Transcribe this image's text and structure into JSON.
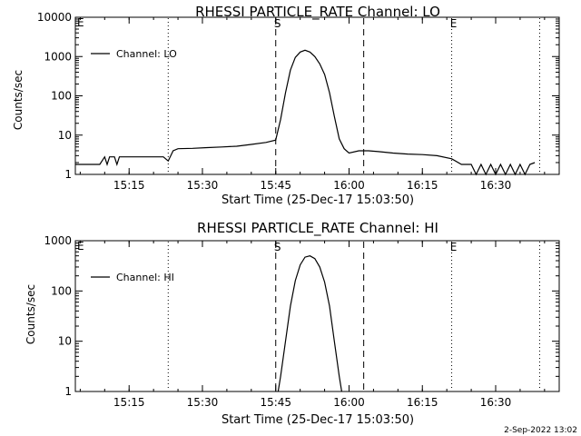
{
  "footer_stamp": "2-Sep-2022 13:02",
  "chart_data": [
    {
      "type": "line",
      "title": "RHESSI PARTICLE_RATE Channel: LO",
      "xlabel": "Start Time (25-Dec-17 15:03:50)",
      "ylabel": "Counts/sec",
      "yscale": "log",
      "xlim": [
        "15:04",
        "16:43"
      ],
      "ylim": [
        1,
        10000
      ],
      "xticks": [
        "15:15",
        "15:30",
        "15:45",
        "16:00",
        "16:15",
        "16:30"
      ],
      "yticks": [
        "1",
        "10",
        "100",
        "1000",
        "10000"
      ],
      "legend": "top-left",
      "grid": false,
      "markers": [
        {
          "time": "15:23:00",
          "style": "dotted",
          "label": ""
        },
        {
          "time": "15:45:00",
          "style": "dashed",
          "label": "S"
        },
        {
          "time": "16:03:00",
          "style": "dashed",
          "label": ""
        },
        {
          "time": "16:21:00",
          "style": "dotted",
          "label": "E"
        },
        {
          "time": "16:39:00",
          "style": "dotted",
          "label": ""
        }
      ],
      "corner_labels": [
        "E"
      ],
      "series": [
        {
          "name": "Channel: LO",
          "x": [
            "15:04:00",
            "15:09:00",
            "15:10:00",
            "15:10:30",
            "15:11:00",
            "15:12:00",
            "15:12:30",
            "15:13:00",
            "15:13:30",
            "15:17:00",
            "15:18:00",
            "15:19:00",
            "15:20:00",
            "15:21:00",
            "15:22:00",
            "15:23:00",
            "15:24:00",
            "15:25:00",
            "15:28:00",
            "15:31:00",
            "15:34:00",
            "15:37:00",
            "15:40:00",
            "15:43:00",
            "15:45:00",
            "15:46:00",
            "15:47:00",
            "15:48:00",
            "15:49:00",
            "15:50:00",
            "15:51:00",
            "15:52:00",
            "15:53:00",
            "15:54:00",
            "15:55:00",
            "15:56:00",
            "15:57:00",
            "15:58:00",
            "15:59:00",
            "16:00:00",
            "16:02:00",
            "16:04:00",
            "16:06:00",
            "16:09:00",
            "16:12:00",
            "16:15:00",
            "16:18:00",
            "16:21:00",
            "16:23:00",
            "16:24:00",
            "16:25:00",
            "16:26:00",
            "16:27:00",
            "16:28:00",
            "16:29:00",
            "16:30:00",
            "16:31:00",
            "16:32:00",
            "16:33:00",
            "16:34:00",
            "16:35:00",
            "16:36:00",
            "16:37:00",
            "16:38:00"
          ],
          "y": [
            1.8,
            1.8,
            2.8,
            1.8,
            2.8,
            2.8,
            1.8,
            2.8,
            2.8,
            2.8,
            2.8,
            2.8,
            2.8,
            2.8,
            2.8,
            2.2,
            4,
            4.5,
            4.6,
            4.8,
            5,
            5.2,
            5.8,
            6.5,
            7.5,
            25,
            120,
            450,
            950,
            1300,
            1450,
            1300,
            1000,
            650,
            350,
            120,
            30,
            8,
            4.5,
            3.5,
            4,
            4,
            3.8,
            3.5,
            3.3,
            3.2,
            3,
            2.5,
            1.8,
            1.8,
            1.8,
            1,
            1.8,
            1,
            1.8,
            1,
            1.8,
            1,
            1.8,
            1,
            1.8,
            1,
            1.8,
            2
          ]
        }
      ]
    },
    {
      "type": "line",
      "title": "RHESSI PARTICLE_RATE Channel: HI",
      "xlabel": "Start Time (25-Dec-17 15:03:50)",
      "ylabel": "Counts/sec",
      "yscale": "log",
      "xlim": [
        "15:04",
        "16:43"
      ],
      "ylim": [
        1,
        1000
      ],
      "xticks": [
        "15:15",
        "15:30",
        "15:45",
        "16:00",
        "16:15",
        "16:30"
      ],
      "yticks": [
        "1",
        "10",
        "100",
        "1000"
      ],
      "legend": "top-left",
      "grid": false,
      "markers": [
        {
          "time": "15:23:00",
          "style": "dotted",
          "label": ""
        },
        {
          "time": "15:45:00",
          "style": "dashed",
          "label": "S"
        },
        {
          "time": "16:03:00",
          "style": "dashed",
          "label": ""
        },
        {
          "time": "16:21:00",
          "style": "dotted",
          "label": "E"
        },
        {
          "time": "16:39:00",
          "style": "dotted",
          "label": ""
        }
      ],
      "corner_labels": [
        "E"
      ],
      "series": [
        {
          "name": "Channel: HI",
          "x": [
            "15:45:30",
            "15:46:00",
            "15:47:00",
            "15:48:00",
            "15:49:00",
            "15:50:00",
            "15:51:00",
            "15:52:00",
            "15:53:00",
            "15:54:00",
            "15:55:00",
            "15:56:00",
            "15:57:00",
            "15:58:00",
            "15:58:30"
          ],
          "y": [
            1,
            2,
            10,
            50,
            160,
            330,
            470,
            500,
            440,
            300,
            150,
            50,
            10,
            2,
            1
          ]
        }
      ]
    }
  ]
}
